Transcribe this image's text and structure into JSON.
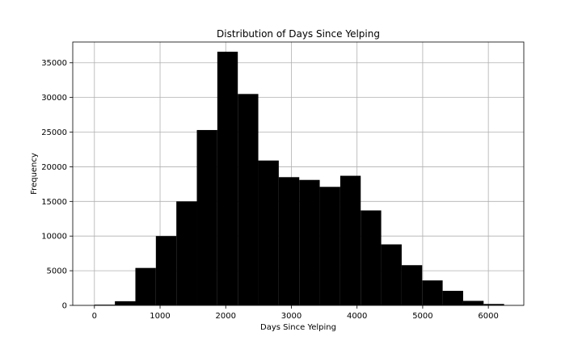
{
  "chart_data": {
    "type": "bar",
    "title": "Distribution of Days Since Yelping",
    "xlabel": "Days Since Yelping",
    "ylabel": "Frequency",
    "xlim": [
      -330,
      6540
    ],
    "ylim": [
      0,
      38000
    ],
    "xticks": [
      0,
      1000,
      2000,
      3000,
      4000,
      5000,
      6000
    ],
    "yticks": [
      0,
      5000,
      10000,
      15000,
      20000,
      25000,
      30000,
      35000
    ],
    "grid": true,
    "bar_color": "#000000",
    "bin_edges": [
      0,
      312,
      624,
      936,
      1248,
      1560,
      1872,
      2184,
      2496,
      2808,
      3120,
      3432,
      3744,
      4056,
      4368,
      4680,
      4992,
      5304,
      5616,
      5928,
      6240
    ],
    "values": [
      100,
      600,
      5400,
      10000,
      15000,
      25300,
      36600,
      30500,
      20900,
      18500,
      18100,
      17100,
      18700,
      13700,
      8800,
      5800,
      3600,
      2100,
      650,
      200
    ]
  }
}
